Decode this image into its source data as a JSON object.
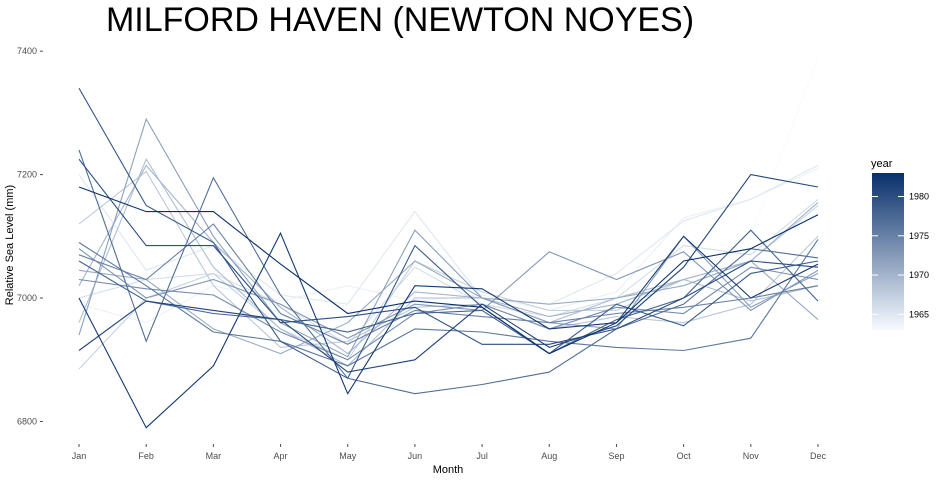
{
  "chart_data": {
    "type": "line",
    "title": "MILFORD HAVEN (NEWTON NOYES)",
    "xlabel": "Month",
    "ylabel": "Relative Sea Level (mm)",
    "categories": [
      "Jan",
      "Feb",
      "Mar",
      "Apr",
      "May",
      "Jun",
      "Jul",
      "Aug",
      "Sep",
      "Oct",
      "Nov",
      "Dec"
    ],
    "ylim": [
      6770,
      7410
    ],
    "yticks": [
      6800,
      7000,
      7200,
      7400
    ],
    "grid": false,
    "legend": {
      "title": "year",
      "position": "right",
      "ticks": [
        1965,
        1970,
        1975,
        1980
      ],
      "range": [
        1963,
        1983
      ],
      "color_low": "#f7fbff",
      "color_high": "#08306b"
    },
    "series": [
      {
        "year": 1963,
        "values": [
          7010,
          7040,
          7030,
          6985,
          6960,
          6990,
          6985,
          6965,
          6985,
          7010,
          7100,
          7390
        ]
      },
      {
        "year": 1964,
        "values": [
          6990,
          6960,
          7020,
          6995,
          7020,
          6995,
          7005,
          6980,
          7010,
          7130,
          7160,
          7210
        ]
      },
      {
        "year": 1965,
        "values": [
          7200,
          7045,
          7085,
          7005,
          6990,
          7140,
          7000,
          6990,
          7040,
          7125,
          7160,
          7215
        ]
      },
      {
        "year": 1966,
        "values": [
          7000,
          7030,
          7040,
          6990,
          6925,
          7050,
          6990,
          6970,
          7000,
          7085,
          7070,
          7160
        ]
      },
      {
        "year": 1967,
        "values": [
          6885,
          7000,
          7040,
          6950,
          6900,
          7060,
          7010,
          6980,
          6980,
          7030,
          7060,
          7150
        ]
      },
      {
        "year": 1968,
        "values": [
          7120,
          7205,
          7020,
          6920,
          6930,
          6985,
          6990,
          6950,
          6970,
          6960,
          6990,
          7100
        ]
      },
      {
        "year": 1969,
        "values": [
          6960,
          7225,
          7050,
          6950,
          6890,
          7000,
          7000,
          6960,
          7000,
          7030,
          6995,
          7020
        ]
      },
      {
        "year": 1970,
        "values": [
          7020,
          7215,
          7090,
          6985,
          6910,
          7010,
          7000,
          6970,
          6990,
          7030,
          7060,
          7155
        ]
      },
      {
        "year": 1971,
        "values": [
          7045,
          7030,
          6950,
          6910,
          6960,
          7060,
          7000,
          6990,
          7000,
          7020,
          7060,
          6965
        ]
      },
      {
        "year": 1972,
        "values": [
          6940,
          7290,
          7100,
          6960,
          6905,
          7110,
          7000,
          6960,
          6950,
          7100,
          6985,
          7040
        ]
      },
      {
        "year": 1973,
        "values": [
          7080,
          7000,
          7030,
          6990,
          6935,
          6990,
          6980,
          7075,
          7030,
          7075,
          6980,
          7045
        ]
      },
      {
        "year": 1974,
        "values": [
          7030,
          7015,
          7005,
          6945,
          6900,
          6975,
          6990,
          6950,
          6985,
          6975,
          7050,
          7030
        ]
      },
      {
        "year": 1975,
        "values": [
          7070,
          7030,
          7120,
          6975,
          6925,
          6980,
          6970,
          6960,
          6975,
          6985,
          7000,
          7020
        ]
      },
      {
        "year": 1976,
        "values": [
          7090,
          7020,
          6945,
          6930,
          6890,
          6950,
          6945,
          6930,
          6920,
          6915,
          6935,
          7095
        ]
      },
      {
        "year": 1977,
        "values": [
          7240,
          6930,
          7195,
          7005,
          6870,
          6845,
          6860,
          6880,
          6950,
          6990,
          7080,
          7065
        ]
      },
      {
        "year": 1978,
        "values": [
          7060,
          6995,
          6975,
          6965,
          6945,
          6975,
          6980,
          6910,
          6965,
          7000,
          7110,
          6995
        ]
      },
      {
        "year": 1979,
        "values": [
          7340,
          7150,
          7090,
          6930,
          6870,
          7085,
          6985,
          6910,
          6990,
          6955,
          7040,
          7060
        ]
      },
      {
        "year": 1980,
        "values": [
          7225,
          7085,
          7085,
          6960,
          6970,
          6985,
          6925,
          6925,
          6950,
          7000,
          7060,
          7050
        ]
      },
      {
        "year": 1981,
        "values": [
          6915,
          6995,
          6980,
          6965,
          6880,
          6900,
          6990,
          6920,
          6955,
          7050,
          7200,
          7180
        ]
      },
      {
        "year": 1982,
        "values": [
          7000,
          6790,
          6890,
          7105,
          6845,
          7020,
          7015,
          6950,
          6960,
          7100,
          7000,
          7055
        ]
      },
      {
        "year": 1983,
        "values": [
          7180,
          7140,
          7140,
          7055,
          6975,
          6995,
          6985,
          6910,
          6960,
          7060,
          7080,
          7135
        ]
      }
    ]
  }
}
